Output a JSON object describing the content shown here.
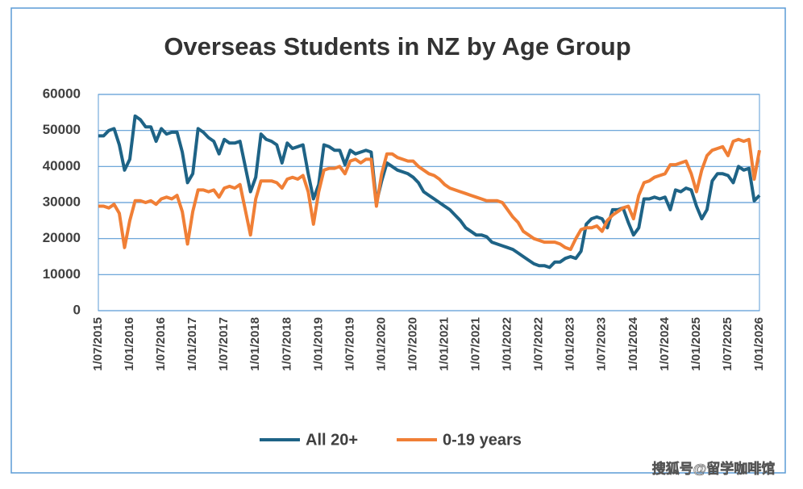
{
  "chart_data": {
    "type": "line",
    "title": "Overseas Students in NZ by Age Group",
    "categories": [
      "1/07/2015",
      null,
      null,
      null,
      null,
      null,
      "1/01/2016",
      null,
      null,
      null,
      null,
      null,
      "1/07/2016",
      null,
      null,
      null,
      null,
      null,
      "1/01/2017",
      null,
      null,
      null,
      null,
      null,
      "1/07/2017",
      null,
      null,
      null,
      null,
      null,
      "1/01/2018",
      null,
      null,
      null,
      null,
      null,
      "1/07/2018",
      null,
      null,
      null,
      null,
      null,
      "1/01/2019",
      null,
      null,
      null,
      null,
      null,
      "1/07/2019",
      null,
      null,
      null,
      null,
      null,
      "1/01/2020",
      null,
      null,
      null,
      null,
      null,
      "1/07/2020",
      null,
      null,
      null,
      null,
      null,
      "1/01/2021",
      null,
      null,
      null,
      null,
      null,
      "1/07/2021",
      null,
      null,
      null,
      null,
      null,
      "1/01/2022",
      null,
      null,
      null,
      null,
      null,
      "1/07/2022",
      null,
      null,
      null,
      null,
      null,
      "1/01/2023",
      null,
      null,
      null,
      null,
      null,
      "1/07/2023",
      null,
      null,
      null,
      null,
      null,
      "1/01/2024",
      null,
      null,
      null,
      null,
      null,
      "1/07/2024",
      null,
      null,
      null,
      null,
      null,
      "1/01/2025",
      null,
      null,
      null,
      null,
      null,
      "1/07/2025",
      null,
      null,
      null,
      null,
      null,
      "1/01/2026"
    ],
    "series": [
      {
        "name": "All 20+",
        "color": "#1e6386",
        "values": [
          48500,
          48500,
          50000,
          50500,
          46000,
          39000,
          42000,
          54000,
          53000,
          51000,
          51000,
          47000,
          50500,
          49000,
          49500,
          49500,
          44000,
          35500,
          38000,
          50500,
          49500,
          48000,
          47000,
          43500,
          47500,
          46500,
          46500,
          47000,
          40000,
          33000,
          37000,
          49000,
          47500,
          47000,
          46000,
          41000,
          46500,
          45000,
          45500,
          46000,
          38000,
          31000,
          35000,
          46000,
          45500,
          44500,
          44500,
          40500,
          44500,
          43500,
          44000,
          44500,
          44000,
          30000,
          36000,
          41000,
          40000,
          39000,
          38500,
          38000,
          37000,
          35500,
          33000,
          32000,
          31000,
          30000,
          29000,
          28000,
          26500,
          25000,
          23000,
          22000,
          21000,
          21000,
          20500,
          19000,
          18500,
          18000,
          17500,
          17000,
          16000,
          15000,
          14000,
          13000,
          12500,
          12500,
          12000,
          13500,
          13500,
          14500,
          15000,
          14500,
          16500,
          24000,
          25500,
          26000,
          25500,
          23000,
          28000,
          28000,
          28500,
          24500,
          21000,
          23000,
          31000,
          31000,
          31500,
          31000,
          31500,
          28000,
          33500,
          33000,
          34000,
          33500,
          29000,
          25500,
          28000,
          36000,
          38000,
          38000,
          37500,
          35500,
          40000,
          39000,
          39500,
          30500,
          32000
        ]
      },
      {
        "name": "0-19 years",
        "color": "#f07f36",
        "values": [
          29000,
          29000,
          28500,
          29500,
          27000,
          17500,
          25000,
          30500,
          30500,
          30000,
          30500,
          29500,
          31000,
          31500,
          31000,
          32000,
          27500,
          18500,
          27500,
          33500,
          33500,
          33000,
          33500,
          31500,
          34000,
          34500,
          34000,
          35000,
          28000,
          21000,
          31000,
          36000,
          36000,
          36000,
          35500,
          34000,
          36500,
          37000,
          36500,
          37500,
          33000,
          24000,
          33000,
          39000,
          39500,
          39500,
          40000,
          38000,
          41500,
          42000,
          41000,
          42000,
          42000,
          29000,
          38000,
          43500,
          43500,
          42500,
          42000,
          41500,
          41500,
          40000,
          39000,
          38000,
          37500,
          36500,
          35000,
          34000,
          33500,
          33000,
          32500,
          32000,
          31500,
          31000,
          30500,
          30500,
          30500,
          30000,
          28000,
          26000,
          24500,
          22000,
          21000,
          20000,
          19500,
          19000,
          19000,
          19000,
          18500,
          17500,
          17000,
          20000,
          22500,
          23000,
          23000,
          23500,
          22000,
          25000,
          26500,
          27500,
          28500,
          29000,
          25500,
          32000,
          35500,
          36000,
          37000,
          37500,
          38000,
          40500,
          40500,
          41000,
          41500,
          38000,
          33000,
          39000,
          43000,
          44500,
          45000,
          45500,
          43000,
          47000,
          47500,
          47000,
          47500,
          36500,
          44500
        ]
      }
    ],
    "ylim": [
      0,
      60000
    ],
    "yticks": [
      0,
      10000,
      20000,
      30000,
      40000,
      50000,
      60000
    ],
    "grid": true,
    "legend": "bottom",
    "watermark": "搜狐号@留学咖啡馆"
  }
}
